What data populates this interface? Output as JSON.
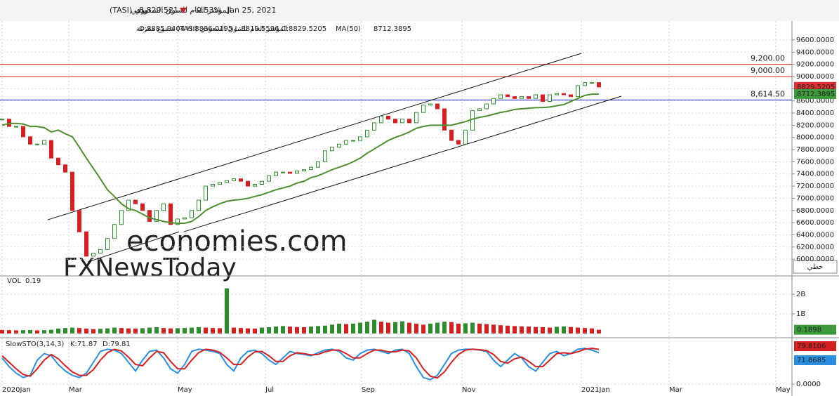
{
  "header": {
    "symbol": "المؤشر العام للسوق السعودي (TASI)",
    "period": "يومي",
    "last": "8,829.521",
    "change": "-0.53%",
    "date": "Jan 25, 2021"
  },
  "legend": {
    "series_info": "المؤشر العام للسوق السعودي (TASI) شموع مفرغة",
    "ohlc": "O:8885.9404 H:8886.0195 L:8819.5596 C:8829.5205",
    "ma_label": "MA(50)",
    "ma_value": "8712.3895"
  },
  "chart_type_button": "خطي",
  "watermark": {
    "line1": "economies.com",
    "line2": "FXNewsToday"
  },
  "chart_data": [
    {
      "type": "candlestick",
      "name": "TASI",
      "xlim": [
        0,
        119
      ],
      "ylim": [
        5725,
        9911
      ],
      "xticks": [
        {
          "value": 0,
          "label": "2020Jan"
        },
        {
          "value": 9.5,
          "label": "Mar"
        },
        {
          "value": 25,
          "label": "May"
        },
        {
          "value": 37.5,
          "label": "Jul"
        },
        {
          "value": 51.2,
          "label": "Sep"
        },
        {
          "value": 65.5,
          "label": "Nov"
        },
        {
          "value": 82.5,
          "label": "2021Jan"
        },
        {
          "value": 95,
          "label": "Mar"
        },
        {
          "value": 110.2,
          "label": "May"
        }
      ],
      "yticks": [
        {
          "value": 6000,
          "label": "6000.0000"
        },
        {
          "value": 6200,
          "label": "6200.0000"
        },
        {
          "value": 6400,
          "label": "6400.0000"
        },
        {
          "value": 6600,
          "label": "6600.0000"
        },
        {
          "value": 6800,
          "label": "6800.0000"
        },
        {
          "value": 7000,
          "label": "7000.0000"
        },
        {
          "value": 7200,
          "label": "7200.0000"
        },
        {
          "value": 7400,
          "label": "7400.0000"
        },
        {
          "value": 7600,
          "label": "7600.0000"
        },
        {
          "value": 7800,
          "label": "7800.0000"
        },
        {
          "value": 8000,
          "label": "8000.0000"
        },
        {
          "value": 8200,
          "label": "8200.0000"
        },
        {
          "value": 8400,
          "label": "8400.0000"
        },
        {
          "value": 8600,
          "label": "8600.0000"
        },
        {
          "value": 8800,
          "label": "8800.0000"
        },
        {
          "value": 9000,
          "label": "9000.0000"
        },
        {
          "value": 9200,
          "label": "9200.0000"
        },
        {
          "value": 9400,
          "label": "9400.0000"
        },
        {
          "value": 9600,
          "label": "9600.0000"
        }
      ],
      "series": [
        {
          "name": "TASI",
          "color": "#2e8b2e",
          "down_color": "#d32020",
          "values": [
            8300,
            8180,
            8180,
            8010,
            7890,
            7890,
            7950,
            7660,
            7550,
            7430,
            6800,
            6450,
            6050,
            6100,
            6160,
            6340,
            6570,
            6800,
            6970,
            6910,
            6800,
            6620,
            6800,
            6910,
            6570,
            6660,
            6680,
            6800,
            6970,
            7200,
            7230,
            7260,
            7290,
            7320,
            7280,
            7200,
            7230,
            7280,
            7370,
            7430,
            7430,
            7410,
            7450,
            7470,
            7510,
            7600,
            7780,
            7840,
            7890,
            7950,
            7950,
            8010,
            8120,
            8240,
            8350,
            8300,
            8240,
            8300,
            8240,
            8410,
            8530,
            8550,
            8470,
            8120,
            7950,
            7890,
            8120,
            8440,
            8470,
            8550,
            8640,
            8700,
            8670,
            8640,
            8670,
            8640,
            8700,
            8590,
            8700,
            8720,
            8700,
            8670,
            8850,
            8900,
            8900,
            8829.52
          ]
        },
        {
          "name": "MA(50)",
          "color": "#4e8f2f",
          "values": [
            8200,
            8230,
            8230,
            8220,
            8180,
            8180,
            8160,
            8090,
            8120,
            8060,
            8010,
            7840,
            7660,
            7490,
            7320,
            7140,
            7030,
            6910,
            6830,
            6800,
            6740,
            6680,
            6650,
            6620,
            6600,
            6590,
            6590,
            6620,
            6700,
            6800,
            6860,
            6910,
            6950,
            6970,
            6980,
            7000,
            7030,
            7060,
            7100,
            7140,
            7170,
            7200,
            7250,
            7280,
            7340,
            7370,
            7420,
            7470,
            7510,
            7550,
            7600,
            7660,
            7740,
            7810,
            7880,
            7950,
            8000,
            8040,
            8090,
            8150,
            8180,
            8200,
            8200,
            8200,
            8200,
            8230,
            8260,
            8300,
            8330,
            8350,
            8380,
            8410,
            8430,
            8460,
            8470,
            8480,
            8490,
            8490,
            8500,
            8520,
            8540,
            8590,
            8640,
            8690,
            8710,
            8712.39
          ]
        }
      ],
      "hlines": [
        {
          "value": 9200,
          "label": "9,200.00",
          "color": "#d32020"
        },
        {
          "value": 9000,
          "label": "9,000.00",
          "color": "#d32020"
        },
        {
          "value": 8614.5,
          "label": "8,614.50",
          "color": "#2020c8"
        }
      ],
      "trendlines": [
        {
          "points": [
            [
              6.5,
              6647
            ],
            [
              82.5,
              9381
            ]
          ]
        },
        {
          "points": [
            [
              25.9,
              6451
            ],
            [
              88.2,
              8677
            ]
          ]
        },
        {
          "points": [
            [
              12.2,
              5955
            ],
            [
              25.2,
              6451
            ]
          ]
        }
      ],
      "tags": [
        {
          "value": 8829.5205,
          "color": "#e03030"
        },
        {
          "value": 8712.3895,
          "color": "#3c9a3c"
        }
      ]
    },
    {
      "type": "bar",
      "name": "VOL",
      "label": "VOL",
      "current": "0.19",
      "color": "#d32020",
      "up_color": "#2e8b2e",
      "ylim": [
        -0.18,
        2.93
      ],
      "yticks": [
        {
          "value": 1,
          "label": "1B"
        },
        {
          "value": 2,
          "label": "2B"
        }
      ],
      "values": [
        0.18,
        0.17,
        0.16,
        0.17,
        0.18,
        0.16,
        0.17,
        0.19,
        0.25,
        0.28,
        0.3,
        0.28,
        0.25,
        0.22,
        0.24,
        0.26,
        0.3,
        0.28,
        0.26,
        0.25,
        0.27,
        0.3,
        0.32,
        0.28,
        0.26,
        0.27,
        0.28,
        0.3,
        0.32,
        0.3,
        0.28,
        0.27,
        2.3,
        0.3,
        0.28,
        0.26,
        0.25,
        0.3,
        0.32,
        0.35,
        0.38,
        0.35,
        0.33,
        0.32,
        0.35,
        0.38,
        0.4,
        0.45,
        0.5,
        0.48,
        0.5,
        0.55,
        0.6,
        0.7,
        0.6,
        0.55,
        0.58,
        0.62,
        0.55,
        0.5,
        0.45,
        0.5,
        0.55,
        0.6,
        0.58,
        0.5,
        0.52,
        0.55,
        0.5,
        0.48,
        0.45,
        0.42,
        0.4,
        0.38,
        0.36,
        0.35,
        0.33,
        0.32,
        0.3,
        0.34,
        0.36,
        0.33,
        0.3,
        0.28,
        0.26,
        0.189
      ],
      "tags": [
        {
          "value": 0.189,
          "label": "0.189B",
          "color": "#3c9a3c"
        }
      ]
    },
    {
      "type": "line",
      "name": "SlowSTO",
      "label": "SlowSTO(3,14,3)",
      "ylim": [
        -9.7,
        104.8
      ],
      "yticks": [
        {
          "value": 0,
          "label": "0.0000"
        }
      ],
      "series": [
        {
          "name": "K:71.87",
          "color": "#2a8fe0",
          "values": [
            60,
            40,
            25,
            15,
            20,
            55,
            70,
            65,
            45,
            30,
            20,
            15,
            25,
            50,
            75,
            80,
            78,
            70,
            50,
            30,
            55,
            75,
            78,
            60,
            35,
            25,
            45,
            75,
            80,
            78,
            75,
            70,
            45,
            30,
            60,
            75,
            78,
            70,
            55,
            45,
            60,
            75,
            70,
            68,
            65,
            72,
            78,
            80,
            75,
            60,
            55,
            70,
            78,
            80,
            75,
            70,
            78,
            80,
            70,
            40,
            15,
            10,
            20,
            45,
            70,
            78,
            80,
            80,
            78,
            75,
            55,
            40,
            55,
            70,
            60,
            40,
            30,
            50,
            70,
            75,
            65,
            70,
            80,
            82,
            78,
            71.87
          ]
        },
        {
          "name": "D:79.81",
          "color": "#d32020",
          "values": [
            65,
            50,
            35,
            22,
            18,
            35,
            55,
            68,
            58,
            42,
            28,
            20,
            20,
            33,
            55,
            72,
            80,
            76,
            62,
            45,
            42,
            60,
            75,
            72,
            52,
            35,
            35,
            55,
            72,
            80,
            78,
            73,
            60,
            45,
            45,
            62,
            74,
            75,
            65,
            52,
            52,
            65,
            72,
            70,
            67,
            68,
            74,
            78,
            78,
            70,
            60,
            60,
            70,
            78,
            78,
            74,
            74,
            78,
            76,
            60,
            35,
            18,
            14,
            28,
            50,
            68,
            78,
            80,
            79,
            77,
            68,
            52,
            48,
            58,
            62,
            52,
            40,
            40,
            55,
            70,
            72,
            70,
            74,
            80,
            82,
            79.81
          ]
        }
      ],
      "tags": [
        {
          "value": 79.8106,
          "color": "#d32020"
        },
        {
          "value": 71.8685,
          "color": "#2a8fe0"
        }
      ]
    }
  ]
}
